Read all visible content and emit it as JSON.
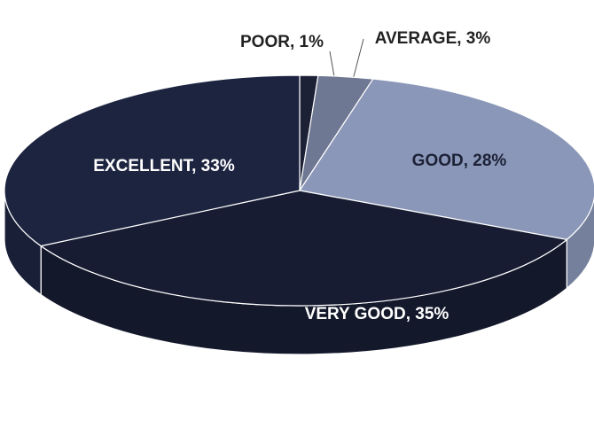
{
  "chart_data": {
    "type": "pie",
    "values": [
      1,
      3,
      28,
      35,
      33
    ],
    "value_labels": [
      "POOR, 1%",
      "AVERAGE, 3%",
      "GOOD, 28%",
      "VERY GOOD, 35%",
      "EXCELLENT, 33%"
    ],
    "colors": [
      "#1c2136",
      "#6f7892",
      "#8a97b8",
      "#171c33",
      "#1d2440"
    ]
  }
}
